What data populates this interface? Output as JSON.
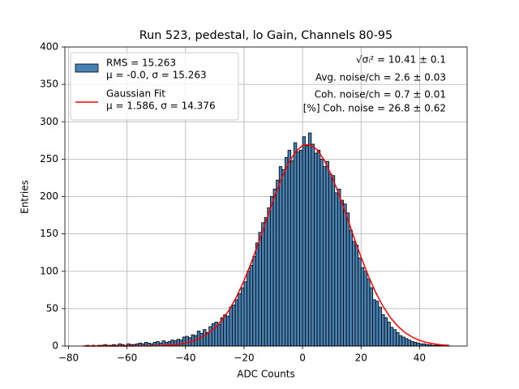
{
  "chart_data": {
    "type": "histogram",
    "title": "Run 523, pedestal, lo Gain, Channels 80-95",
    "x_label": "ADC Counts",
    "y_label": "Entries",
    "bins": [
      -75,
      -74,
      -73,
      -72,
      -71,
      -70,
      -69,
      -68,
      -67,
      -66,
      -65,
      -64,
      -63,
      -62,
      -61,
      -60,
      -59,
      -58,
      -57,
      -56,
      -55,
      -54,
      -53,
      -52,
      -51,
      -50,
      -49,
      -48,
      -47,
      -46,
      -45,
      -44,
      -43,
      -42,
      -41,
      -40,
      -39,
      -38,
      -37,
      -36,
      -35,
      -34,
      -33,
      -32,
      -31,
      -30,
      -29,
      -28,
      -27,
      -26,
      -25,
      -24,
      -23,
      -22,
      -21,
      -20,
      -19,
      -18,
      -17,
      -16,
      -15,
      -14,
      -13,
      -12,
      -11,
      -10,
      -9,
      -8,
      -7,
      -6,
      -5,
      -4,
      -3,
      -2,
      -1,
      0,
      1,
      2,
      3,
      4,
      5,
      6,
      7,
      8,
      9,
      10,
      11,
      12,
      13,
      14,
      15,
      16,
      17,
      18,
      19,
      20,
      21,
      22,
      23,
      24,
      25,
      26,
      27,
      28,
      29,
      30,
      31,
      32,
      33,
      34,
      35,
      36,
      37,
      38,
      39,
      40,
      41,
      42,
      43,
      44,
      45,
      46,
      47,
      48,
      49,
      50
    ],
    "series": [
      {
        "name": [
          "RMS = 15.263",
          "μ = -0.0, σ = 15.263"
        ],
        "color": "#4682b4",
        "edgecolor": "#000000",
        "values": [
          0,
          1,
          0,
          1,
          0,
          1,
          1,
          2,
          1,
          1,
          2,
          1,
          3,
          2,
          1,
          3,
          2,
          2,
          3,
          4,
          3,
          5,
          4,
          3,
          5,
          6,
          4,
          7,
          5,
          6,
          8,
          7,
          9,
          8,
          12,
          13,
          11,
          15,
          14,
          20,
          17,
          22,
          18,
          26,
          30,
          32,
          29,
          38,
          42,
          40,
          52,
          55,
          62,
          70,
          78,
          86,
          100,
          108,
          120,
          138,
          152,
          165,
          172,
          185,
          200,
          210,
          222,
          240,
          236,
          252,
          262,
          248,
          272,
          260,
          262,
          280,
          268,
          285,
          270,
          258,
          262,
          250,
          240,
          247,
          230,
          228,
          205,
          210,
          195,
          190,
          178,
          155,
          140,
          135,
          118,
          105,
          100,
          90,
          78,
          62,
          60,
          52,
          42,
          38,
          32,
          25,
          22,
          18,
          14,
          12,
          10,
          8,
          6,
          5,
          4,
          3,
          3,
          2,
          2,
          1,
          1,
          1,
          1,
          0,
          1
        ]
      }
    ],
    "lines": [
      {
        "name": [
          "Gaussian Fit",
          "μ = 1.586, σ = 14.376"
        ],
        "color": "#ff0000",
        "x": [
          -75,
          -72.5,
          -70,
          -67.5,
          -65,
          -62.5,
          -60,
          -57.5,
          -55,
          -52.5,
          -50,
          -47.5,
          -45,
          -42.5,
          -40,
          -37.5,
          -35,
          -32.5,
          -30,
          -27.5,
          -25,
          -22.5,
          -20,
          -17.5,
          -15,
          -12.5,
          -10,
          -7.5,
          -5,
          -2.5,
          0,
          2.5,
          5,
          7.5,
          10,
          12.5,
          15,
          17.5,
          20,
          22.5,
          25,
          27.5,
          30,
          32.5,
          35,
          37.5,
          40,
          42.5,
          45,
          47.5,
          50
        ],
        "values": [
          0,
          0,
          0,
          0,
          0,
          0,
          0,
          0.1,
          0.1,
          0.2,
          0.4,
          0.8,
          1.4,
          2.5,
          4.1,
          6.7,
          10.6,
          16.2,
          24.2,
          34.9,
          48.9,
          66.4,
          87.5,
          111.9,
          138.8,
          167.1,
          195.3,
          221.1,
          243.1,
          259.3,
          268.4,
          269.5,
          262.5,
          248.1,
          227.5,
          202.2,
          174.6,
          146.2,
          118.8,
          93.9,
          71.8,
          53.2,
          38.3,
          26.7,
          18.1,
          11.9,
          7.6,
          4.7,
          2.8,
          1.6,
          0.9
        ]
      }
    ],
    "annotations": [
      "√σᵢ² = 10.41 ± 0.1",
      "Avg. noise/ch = 2.6 ± 0.03",
      "Coh. noise/ch = 0.7 ± 0.01",
      "[%] Coh. noise = 26.8 ± 0.62"
    ],
    "xlim": [
      -81.25,
      56.25
    ],
    "ylim": [
      0,
      400
    ],
    "xticks": [
      {
        "value": -80,
        "label": "−80"
      },
      {
        "value": -60,
        "label": "−60"
      },
      {
        "value": -40,
        "label": "−40"
      },
      {
        "value": -20,
        "label": "−20"
      },
      0,
      20,
      40
    ],
    "yticks": [
      0,
      50,
      100,
      150,
      200,
      250,
      300,
      350,
      400
    ],
    "grid": true,
    "legend": "upper left"
  }
}
